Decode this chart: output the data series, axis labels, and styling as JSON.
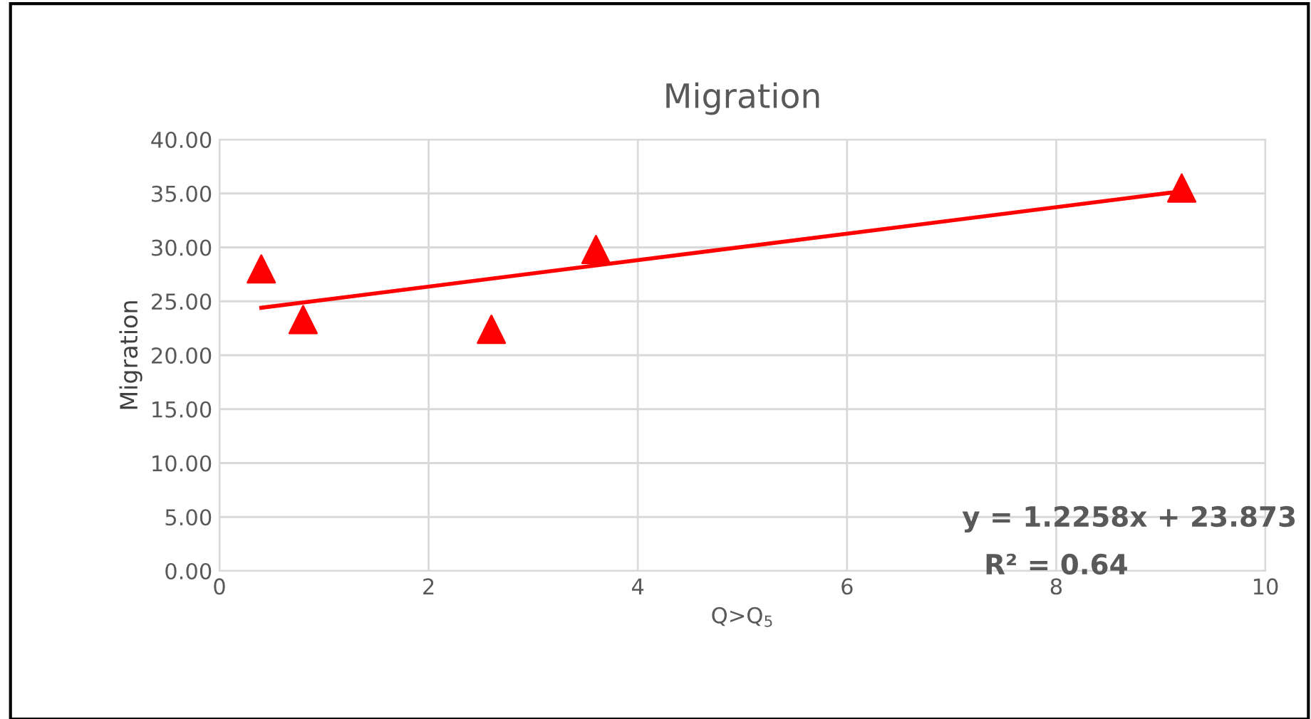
{
  "chart_data": {
    "type": "scatter",
    "title": "Migration",
    "xlabel": "Q>Q$_{5}$",
    "ylabel": "Migration",
    "annotations": [
      "y = 1.2258x + 23.873",
      "R² = 0.64"
    ],
    "series": [
      {
        "type": "scatter",
        "color": "#ff0000",
        "marker": "triangle",
        "x": [
          0.4,
          0.8,
          2.6,
          3.6,
          9.2
        ],
        "values": [
          28.0,
          23.3,
          22.4,
          29.8,
          35.5
        ]
      },
      {
        "type": "line",
        "color": "#ff0000",
        "marker": "none",
        "x": [
          0.4,
          9.2
        ],
        "values": [
          24.4,
          35.2
        ]
      }
    ],
    "xlim": [
      0,
      10
    ],
    "xticks": [
      0,
      2,
      4,
      6,
      8,
      10
    ],
    "ylim": [
      0,
      40
    ],
    "yticks": [
      {
        "value": 0,
        "label": "0.00"
      },
      {
        "value": 5,
        "label": "5.00"
      },
      {
        "value": 10,
        "label": "10.00"
      },
      {
        "value": 15,
        "label": "15.00"
      },
      {
        "value": 20,
        "label": "20.00"
      },
      {
        "value": 25,
        "label": "25.00"
      },
      {
        "value": 30,
        "label": "30.00"
      },
      {
        "value": 35,
        "label": "35.00"
      },
      {
        "value": 40,
        "label": "40.00"
      }
    ],
    "grid": true
  }
}
